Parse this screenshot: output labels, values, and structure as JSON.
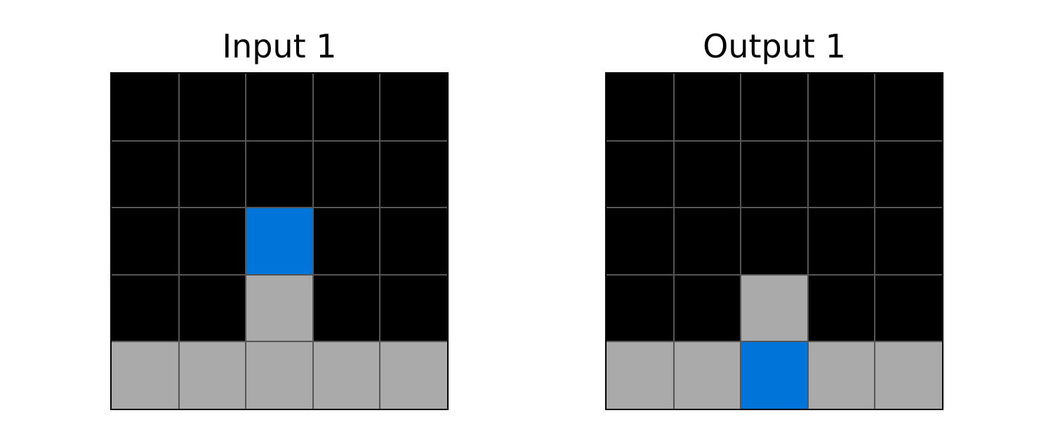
{
  "palette": {
    "0": "#000000",
    "1": "#0074D9",
    "5": "#AAAAAA"
  },
  "input": {
    "title": "Input 1",
    "grid": [
      [
        0,
        0,
        0,
        0,
        0
      ],
      [
        0,
        0,
        0,
        0,
        0
      ],
      [
        0,
        0,
        1,
        0,
        0
      ],
      [
        0,
        0,
        5,
        0,
        0
      ],
      [
        5,
        5,
        5,
        5,
        5
      ]
    ]
  },
  "output": {
    "title": "Output 1",
    "grid": [
      [
        0,
        0,
        0,
        0,
        0
      ],
      [
        0,
        0,
        0,
        0,
        0
      ],
      [
        0,
        0,
        0,
        0,
        0
      ],
      [
        0,
        0,
        5,
        0,
        0
      ],
      [
        5,
        5,
        1,
        5,
        5
      ]
    ]
  }
}
